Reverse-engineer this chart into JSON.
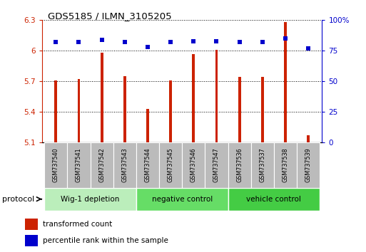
{
  "title": "GDS5185 / ILMN_3105205",
  "samples": [
    "GSM737540",
    "GSM737541",
    "GSM737542",
    "GSM737543",
    "GSM737544",
    "GSM737545",
    "GSM737546",
    "GSM737547",
    "GSM737536",
    "GSM737537",
    "GSM737538",
    "GSM737539"
  ],
  "bar_values": [
    5.71,
    5.72,
    5.98,
    5.75,
    5.43,
    5.71,
    5.97,
    6.01,
    5.74,
    5.74,
    6.28,
    5.17
  ],
  "dot_values": [
    82,
    82,
    84,
    82,
    78,
    82,
    83,
    83,
    82,
    82,
    85,
    77
  ],
  "ylim_left": [
    5.1,
    6.3
  ],
  "ylim_right": [
    0,
    100
  ],
  "yticks_left": [
    5.1,
    5.4,
    5.7,
    6.0,
    6.3
  ],
  "yticks_right": [
    0,
    25,
    50,
    75,
    100
  ],
  "ytick_labels_left": [
    "5.1",
    "5.4",
    "5.7",
    "6",
    "6.3"
  ],
  "ytick_labels_right": [
    "0",
    "25",
    "50",
    "75",
    "100%"
  ],
  "groups": [
    {
      "label": "Wig-1 depletion",
      "indices": [
        0,
        1,
        2,
        3
      ],
      "color": "#bbeebb"
    },
    {
      "label": "negative control",
      "indices": [
        4,
        5,
        6,
        7
      ],
      "color": "#66dd66"
    },
    {
      "label": "vehicle control",
      "indices": [
        8,
        9,
        10,
        11
      ],
      "color": "#44cc44"
    }
  ],
  "bar_color": "#cc2200",
  "dot_color": "#0000cc",
  "bar_width": 0.12,
  "grid_color": "#000000",
  "sample_bg_color": "#bbbbbb",
  "protocol_label": "protocol",
  "legend_items": [
    {
      "color": "#cc2200",
      "label": "transformed count"
    },
    {
      "color": "#0000cc",
      "label": "percentile rank within the sample"
    }
  ]
}
